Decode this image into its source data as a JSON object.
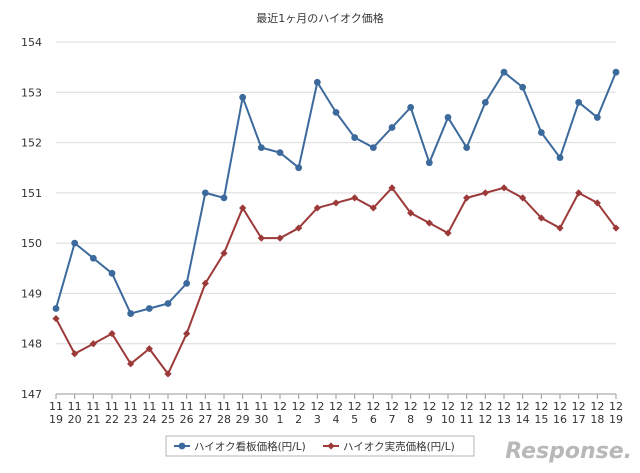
{
  "chart_data": {
    "type": "line",
    "title": "最近1ヶ月のハイオク価格",
    "ylim": [
      147,
      154
    ],
    "yticks": [
      147,
      148,
      149,
      150,
      151,
      152,
      153,
      154
    ],
    "grid": "horizontal",
    "legend_position": "bottom",
    "x_labels": [
      {
        "month": "11",
        "day": "19"
      },
      {
        "month": "11",
        "day": "20"
      },
      {
        "month": "11",
        "day": "21"
      },
      {
        "month": "11",
        "day": "22"
      },
      {
        "month": "11",
        "day": "23"
      },
      {
        "month": "11",
        "day": "24"
      },
      {
        "month": "11",
        "day": "25"
      },
      {
        "month": "11",
        "day": "26"
      },
      {
        "month": "11",
        "day": "27"
      },
      {
        "month": "11",
        "day": "28"
      },
      {
        "month": "11",
        "day": "29"
      },
      {
        "month": "11",
        "day": "30"
      },
      {
        "month": "12",
        "day": "1"
      },
      {
        "month": "12",
        "day": "2"
      },
      {
        "month": "12",
        "day": "3"
      },
      {
        "month": "12",
        "day": "4"
      },
      {
        "month": "12",
        "day": "5"
      },
      {
        "month": "12",
        "day": "6"
      },
      {
        "month": "12",
        "day": "7"
      },
      {
        "month": "12",
        "day": "8"
      },
      {
        "month": "12",
        "day": "9"
      },
      {
        "month": "12",
        "day": "10"
      },
      {
        "month": "12",
        "day": "11"
      },
      {
        "month": "12",
        "day": "12"
      },
      {
        "month": "12",
        "day": "13"
      },
      {
        "month": "12",
        "day": "14"
      },
      {
        "month": "12",
        "day": "15"
      },
      {
        "month": "12",
        "day": "16"
      },
      {
        "month": "12",
        "day": "17"
      },
      {
        "month": "12",
        "day": "18"
      },
      {
        "month": "12",
        "day": "19"
      }
    ],
    "series": [
      {
        "name": "ハイオク看板価格(円/L)",
        "color": "#3d6a9c",
        "marker": "circle",
        "values": [
          148.7,
          150.0,
          149.7,
          149.4,
          148.6,
          148.7,
          148.8,
          149.2,
          151.0,
          150.9,
          152.9,
          151.9,
          151.8,
          151.5,
          153.2,
          152.6,
          152.1,
          151.9,
          152.3,
          152.7,
          151.6,
          152.5,
          151.9,
          152.8,
          153.4,
          153.1,
          152.2,
          151.7,
          152.8,
          152.5,
          153.4
        ]
      },
      {
        "name": "ハイオク実売価格(円/L)",
        "color": "#9b3a38",
        "marker": "diamond",
        "values": [
          148.5,
          147.8,
          148.0,
          148.2,
          147.6,
          147.9,
          147.4,
          148.2,
          149.2,
          149.8,
          150.7,
          150.1,
          150.1,
          150.3,
          150.7,
          150.8,
          150.9,
          150.7,
          151.1,
          150.6,
          150.4,
          150.2,
          150.9,
          151.0,
          151.1,
          150.9,
          150.5,
          150.3,
          151.0,
          150.8,
          150.3
        ]
      }
    ]
  },
  "watermark": "Response."
}
